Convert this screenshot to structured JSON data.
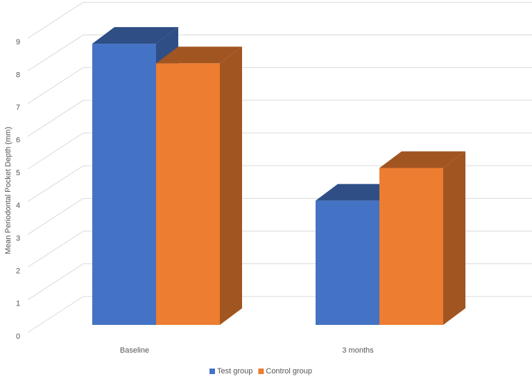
{
  "chart_data": {
    "type": "bar3d",
    "y_label": "Mean Periodontal Pocket Depth (mm)",
    "categories": [
      "Baseline",
      "3 months"
    ],
    "series": [
      {
        "name": "Test group",
        "color": "#4472c4",
        "values": [
          8.6,
          3.8
        ]
      },
      {
        "name": "Control group",
        "color": "#ed7d31",
        "values": [
          8.0,
          4.8
        ]
      }
    ],
    "ylim": [
      0,
      9
    ],
    "yticks": [
      0,
      1,
      2,
      3,
      4,
      5,
      6,
      7,
      8,
      9
    ],
    "grid": true,
    "legend": "bottom"
  }
}
